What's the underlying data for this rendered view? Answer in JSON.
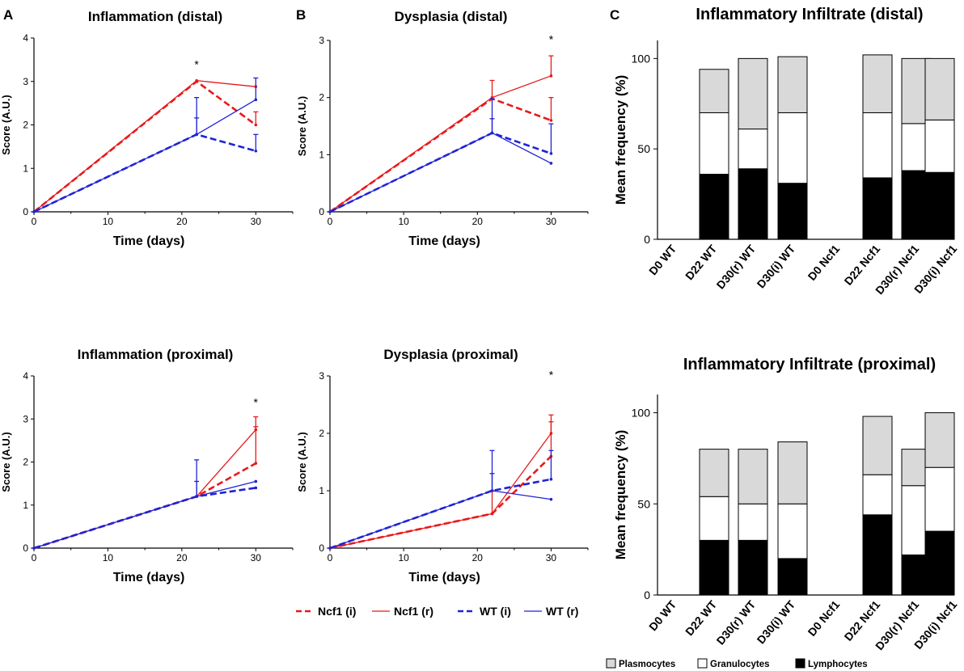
{
  "panel_labels": {
    "a": "A",
    "b": "B",
    "c": "C"
  },
  "legend_line": [
    {
      "name": "Ncf1 (i)",
      "color": "#e8191b",
      "dashed": true
    },
    {
      "name": "Ncf1 (r)",
      "color": "#e8191b",
      "dashed": false
    },
    {
      "name": "WT (i)",
      "color": "#1f23d6",
      "dashed": true
    },
    {
      "name": "WT (r)",
      "color": "#1f23d6",
      "dashed": false
    }
  ],
  "legend_bar": [
    {
      "name": "Plasmocytes",
      "fill": "#d9d9d9"
    },
    {
      "name": "Granulocytes",
      "fill": "#ffffff"
    },
    {
      "name": "Lymphocytes",
      "fill": "#000000"
    }
  ],
  "chart_data": [
    {
      "type": "line",
      "id": "infl-distal",
      "title": "Inflammation (distal)",
      "xlabel": "Time (days)",
      "ylabel": "Score (A.U.)",
      "xlim": [
        0,
        35
      ],
      "ylim": [
        0,
        4
      ],
      "xticks": [
        0,
        10,
        20,
        30
      ],
      "yticks": [
        0,
        1,
        2,
        3,
        4
      ],
      "annotations": [
        {
          "text": "*",
          "x": 22,
          "y": 3.3
        }
      ],
      "series": [
        {
          "name": "Ncf1 (r)",
          "color": "#e8191b",
          "dashed": false,
          "x": [
            0,
            22,
            30
          ],
          "y": [
            0,
            3.02,
            2.88
          ],
          "err": [
            null,
            null,
            null
          ]
        },
        {
          "name": "Ncf1 (i)",
          "color": "#e8191b",
          "dashed": true,
          "x": [
            0,
            22,
            30
          ],
          "y": [
            0,
            3.0,
            2.0
          ],
          "err": [
            null,
            null,
            0.3
          ]
        },
        {
          "name": "WT (r)",
          "color": "#1f23d6",
          "dashed": false,
          "x": [
            0,
            22,
            30
          ],
          "y": [
            0,
            1.78,
            2.58
          ],
          "err": [
            null,
            0.85,
            0.5
          ]
        },
        {
          "name": "WT (i)",
          "color": "#1f23d6",
          "dashed": true,
          "x": [
            0,
            22,
            30
          ],
          "y": [
            0,
            1.78,
            1.4
          ],
          "err": [
            null,
            0.38,
            0.38
          ]
        }
      ]
    },
    {
      "type": "line",
      "id": "dysp-distal",
      "title": "Dysplasia (distal)",
      "xlabel": "Time (days)",
      "ylabel": "Score (A.U.)",
      "xlim": [
        0,
        35
      ],
      "ylim": [
        0,
        3
      ],
      "xticks": [
        0,
        10,
        20,
        30
      ],
      "yticks": [
        0,
        1,
        2,
        3
      ],
      "annotations": [
        {
          "text": "*",
          "x": 30,
          "y": 2.95
        }
      ],
      "series": [
        {
          "name": "Ncf1 (r)",
          "color": "#e8191b",
          "dashed": false,
          "x": [
            0,
            22,
            30
          ],
          "y": [
            0,
            2.0,
            2.38
          ],
          "err": [
            null,
            0.3,
            0.35
          ]
        },
        {
          "name": "Ncf1 (i)",
          "color": "#e8191b",
          "dashed": true,
          "x": [
            0,
            22,
            30
          ],
          "y": [
            0,
            1.98,
            1.6
          ],
          "err": [
            null,
            null,
            0.4
          ]
        },
        {
          "name": "WT (r)",
          "color": "#1f23d6",
          "dashed": false,
          "x": [
            0,
            22,
            30
          ],
          "y": [
            0,
            1.38,
            0.85
          ],
          "err": [
            null,
            0.25,
            null
          ]
        },
        {
          "name": "WT (i)",
          "color": "#1f23d6",
          "dashed": true,
          "x": [
            0,
            22,
            30
          ],
          "y": [
            0,
            1.38,
            1.02
          ],
          "err": [
            null,
            0.6,
            0.52
          ]
        }
      ]
    },
    {
      "type": "line",
      "id": "infl-proximal",
      "title": "Inflammation (proximal)",
      "xlabel": "Time (days)",
      "ylabel": "Score (A.U.)",
      "xlim": [
        0,
        35
      ],
      "ylim": [
        0,
        4
      ],
      "xticks": [
        0,
        10,
        20,
        30
      ],
      "yticks": [
        0,
        1,
        2,
        3,
        4
      ],
      "annotations": [
        {
          "text": "*",
          "x": 30,
          "y": 3.3
        }
      ],
      "series": [
        {
          "name": "Ncf1 (r)",
          "color": "#e8191b",
          "dashed": false,
          "x": [
            0,
            22,
            30
          ],
          "y": [
            0,
            1.2,
            2.75
          ],
          "err": [
            null,
            null,
            0.3
          ]
        },
        {
          "name": "Ncf1 (i)",
          "color": "#e8191b",
          "dashed": true,
          "x": [
            0,
            22,
            30
          ],
          "y": [
            0,
            1.2,
            1.97
          ],
          "err": [
            null,
            null,
            0.85
          ]
        },
        {
          "name": "WT (r)",
          "color": "#1f23d6",
          "dashed": false,
          "x": [
            0,
            22,
            30
          ],
          "y": [
            0,
            1.2,
            1.55
          ],
          "err": [
            null,
            0.85,
            null
          ]
        },
        {
          "name": "WT (i)",
          "color": "#1f23d6",
          "dashed": true,
          "x": [
            0,
            22,
            30
          ],
          "y": [
            0,
            1.2,
            1.4
          ],
          "err": [
            null,
            0.35,
            null
          ]
        }
      ]
    },
    {
      "type": "line",
      "id": "dysp-proximal",
      "title": "Dysplasia (proximal)",
      "xlabel": "Time (days)",
      "ylabel": "Score (A.U.)",
      "xlim": [
        0,
        35
      ],
      "ylim": [
        0,
        3
      ],
      "xticks": [
        0,
        10,
        20,
        30
      ],
      "yticks": [
        0,
        1,
        2,
        3
      ],
      "annotations": [
        {
          "text": "*",
          "x": 30,
          "y": 2.95
        }
      ],
      "series": [
        {
          "name": "Ncf1 (r)",
          "color": "#e8191b",
          "dashed": false,
          "x": [
            0,
            22,
            30
          ],
          "y": [
            0,
            0.6,
            2.0
          ],
          "err": [
            null,
            0.4,
            0.32
          ]
        },
        {
          "name": "Ncf1 (i)",
          "color": "#e8191b",
          "dashed": true,
          "x": [
            0,
            22,
            30
          ],
          "y": [
            0,
            0.6,
            1.6
          ],
          "err": [
            null,
            null,
            0.6
          ]
        },
        {
          "name": "WT (r)",
          "color": "#1f23d6",
          "dashed": false,
          "x": [
            0,
            22,
            30
          ],
          "y": [
            0,
            1.0,
            0.85
          ],
          "err": [
            null,
            0.7,
            null
          ]
        },
        {
          "name": "WT (i)",
          "color": "#1f23d6",
          "dashed": true,
          "x": [
            0,
            22,
            30
          ],
          "y": [
            0,
            1.0,
            1.2
          ],
          "err": [
            null,
            0.3,
            0.5
          ]
        }
      ]
    },
    {
      "type": "bar",
      "stacked": true,
      "id": "infiltrate-distal",
      "title": "Inflammatory Infiltrate (distal)",
      "ylabel": "Mean frequency (%)",
      "ylim": [
        0,
        110
      ],
      "yticks": [
        0,
        50,
        100
      ],
      "categories": [
        "D0 WT",
        "D22 WT",
        "D30(r) WT",
        "D30(i) WT",
        "D0 Ncf1",
        "D22 Ncf1",
        "D30(r) Ncf1",
        "D30(i) Ncf1"
      ],
      "series": [
        {
          "name": "Lymphocytes",
          "fill": "#000000",
          "values": [
            0,
            36,
            39,
            31,
            0,
            34,
            38,
            37
          ]
        },
        {
          "name": "Granulocytes",
          "fill": "#ffffff",
          "values": [
            0,
            34,
            22,
            39,
            0,
            36,
            26,
            29
          ]
        },
        {
          "name": "Plasmocytes",
          "fill": "#d9d9d9",
          "values": [
            0,
            24,
            39,
            31,
            0,
            32,
            36,
            34
          ]
        }
      ]
    },
    {
      "type": "bar",
      "stacked": true,
      "id": "infiltrate-proximal",
      "title": "Inflammatory Infiltrate (proximal)",
      "ylabel": "Mean frequency (%)",
      "ylim": [
        0,
        110
      ],
      "yticks": [
        0,
        50,
        100
      ],
      "categories": [
        "D0 WT",
        "D22 WT",
        "D30(r) WT",
        "D30(i) WT",
        "D0 Ncf1",
        "D22 Ncf1",
        "D30(r) Ncf1",
        "D30(i) Ncf1"
      ],
      "series": [
        {
          "name": "Lymphocytes",
          "fill": "#000000",
          "values": [
            0,
            30,
            30,
            20,
            0,
            44,
            22,
            35
          ]
        },
        {
          "name": "Granulocytes",
          "fill": "#ffffff",
          "values": [
            0,
            24,
            20,
            30,
            0,
            22,
            38,
            35
          ]
        },
        {
          "name": "Plasmocytes",
          "fill": "#d9d9d9",
          "values": [
            0,
            26,
            30,
            34,
            0,
            32,
            20,
            30
          ]
        }
      ]
    }
  ]
}
